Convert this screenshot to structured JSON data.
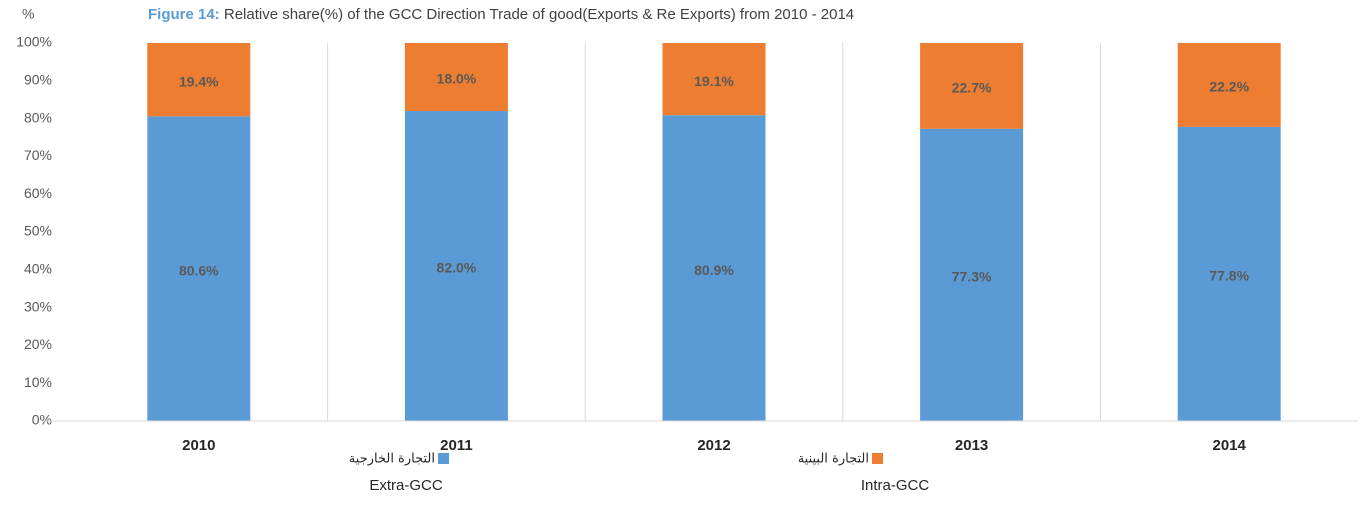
{
  "chart_data": {
    "type": "stacked_bar",
    "title_label": "Figure 14:",
    "title": "Relative share(%) of the GCC Direction Trade of good(Exports & Re Exports)  from 2010 - 2014",
    "y_label": "%",
    "categories": [
      "2010",
      "2011",
      "2012",
      "2013",
      "2014"
    ],
    "series": [
      {
        "name": "Extra-GCC",
        "name_ar": "التجارة الخارجية",
        "color": "#5B9BD5",
        "values": [
          80.6,
          82.0,
          80.9,
          77.3,
          77.8
        ],
        "value_labels": [
          "80.6%",
          "82.0%",
          "80.9%",
          "77.3%",
          "77.8%"
        ]
      },
      {
        "name": "Intra-GCC",
        "name_ar": "التجارة البينية",
        "color": "#ED7D31",
        "values": [
          19.4,
          18.0,
          19.1,
          22.7,
          22.2
        ],
        "value_labels": [
          "19.4%",
          "18.0%",
          "19.1%",
          "22.7%",
          "22.2%"
        ]
      }
    ],
    "ylim": [
      0,
      100
    ],
    "yticks": [
      {
        "value": 0,
        "label": "0%"
      },
      {
        "value": 10,
        "label": "10%"
      },
      {
        "value": 20,
        "label": "20%"
      },
      {
        "value": 30,
        "label": "30%"
      },
      {
        "value": 40,
        "label": "40%"
      },
      {
        "value": 50,
        "label": "50%"
      },
      {
        "value": 60,
        "label": "60%"
      },
      {
        "value": 70,
        "label": "70%"
      },
      {
        "value": 80,
        "label": "80%"
      },
      {
        "value": 90,
        "label": "90%"
      },
      {
        "value": 100,
        "label": "100%"
      }
    ]
  }
}
